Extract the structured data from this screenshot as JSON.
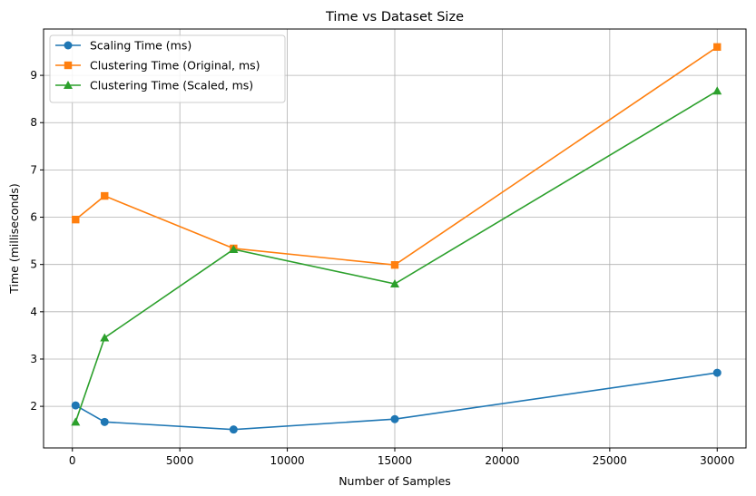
{
  "chart_data": {
    "type": "line",
    "title": "Time vs Dataset Size",
    "xlabel": "Number of Samples",
    "ylabel": "Time (milliseconds)",
    "xlim": [
      -1340,
      31340
    ],
    "ylim": [
      1.12,
      9.98
    ],
    "xticks": [
      0,
      5000,
      10000,
      15000,
      20000,
      25000,
      30000
    ],
    "yticks": [
      2,
      3,
      4,
      5,
      6,
      7,
      8,
      9
    ],
    "grid": true,
    "legend_position": "top-left",
    "x": [
      150,
      1500,
      7500,
      15000,
      30000
    ],
    "series": [
      {
        "name": "Scaling Time (ms)",
        "color": "#1f77b4",
        "marker": "circle",
        "values": [
          2.02,
          1.67,
          1.51,
          1.73,
          2.71
        ]
      },
      {
        "name": "Clustering Time (Original, ms)",
        "color": "#ff7f0e",
        "marker": "square",
        "values": [
          5.95,
          6.45,
          5.34,
          4.99,
          9.6
        ]
      },
      {
        "name": "Clustering Time (Scaled, ms)",
        "color": "#2ca02c",
        "marker": "triangle",
        "values": [
          1.67,
          3.45,
          5.32,
          4.59,
          8.67
        ]
      }
    ]
  }
}
